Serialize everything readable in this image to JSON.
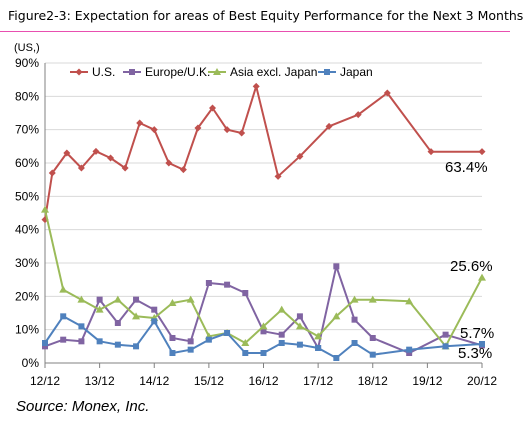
{
  "title": "Figure2-3: Expectation for areas of Best Equity Performance for the Next 3 Months",
  "unit": "(US,)",
  "source": "Source: Monex, Inc.",
  "chart_data": {
    "type": "line",
    "ylim": [
      0,
      90
    ],
    "yticks": [
      "0%",
      "10%",
      "20%",
      "30%",
      "40%",
      "50%",
      "60%",
      "70%",
      "80%",
      "90%"
    ],
    "xticks": [
      "12/12",
      "13/12",
      "14/12",
      "15/12",
      "16/12",
      "17/12",
      "18/12",
      "19/12",
      "20/12"
    ],
    "xlim": [
      0,
      96
    ],
    "grid": true,
    "legend_position": "top",
    "series": [
      {
        "name": "U.S.",
        "color": "#c0504d",
        "marker": "diamond",
        "x": [
          0,
          1,
          3,
          5,
          7,
          9,
          11,
          13,
          15,
          17,
          19,
          21,
          23,
          25,
          27,
          29,
          32,
          35,
          39,
          43,
          47,
          53,
          60
        ],
        "values": [
          43,
          57,
          63,
          58.5,
          63.5,
          61.5,
          58.5,
          72,
          70,
          60,
          58,
          70.5,
          76.5,
          70,
          69,
          83,
          56,
          62,
          71,
          74.5,
          81,
          63.4,
          63.4
        ]
      },
      {
        "name": "Europe/U.K.",
        "color": "#8064a2",
        "marker": "square",
        "x": [
          0,
          2,
          4,
          6,
          8,
          10,
          12,
          14,
          16,
          18,
          20,
          22,
          24,
          26,
          28,
          30,
          32,
          34,
          36,
          40,
          44,
          48
        ],
        "values": [
          5,
          7,
          6.5,
          19,
          12,
          19,
          16,
          7.5,
          6.5,
          24,
          23.5,
          21,
          9.5,
          8.5,
          14,
          4.5,
          29,
          13,
          7.5,
          3,
          8.5,
          5.3
        ]
      },
      {
        "name": "Asia excl. Japan",
        "color": "#9bbb59",
        "marker": "triangle",
        "x": [
          0,
          2,
          4,
          6,
          8,
          10,
          12,
          14,
          16,
          18,
          20,
          22,
          24,
          26,
          28,
          30,
          32,
          34,
          36,
          40,
          44,
          48
        ],
        "values": [
          46,
          22,
          19,
          16,
          19,
          14,
          13.5,
          18,
          19,
          8,
          9,
          6,
          11,
          16,
          11,
          8,
          14,
          19,
          19,
          18.5,
          5,
          25.6
        ]
      },
      {
        "name": "Japan",
        "color": "#4f81bd",
        "marker": "square",
        "x": [
          0,
          2,
          4,
          6,
          8,
          10,
          12,
          14,
          16,
          18,
          20,
          22,
          24,
          26,
          28,
          30,
          32,
          34,
          36,
          40,
          44,
          48
        ],
        "values": [
          6,
          14,
          11,
          6.5,
          5.5,
          5,
          12.5,
          3,
          4,
          7,
          9,
          3,
          3,
          6,
          5.5,
          4.5,
          1.5,
          6,
          2.5,
          4,
          5,
          5.7
        ]
      }
    ],
    "annotations": [
      "63.4%",
      "25.6%",
      "5.7%",
      "5.3%"
    ]
  }
}
